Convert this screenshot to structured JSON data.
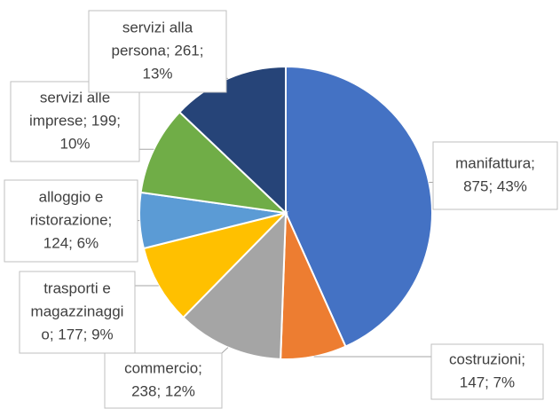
{
  "chart_data": {
    "type": "pie",
    "values": [
      875,
      147,
      238,
      177,
      124,
      199,
      261
    ],
    "value_labels": [
      [
        "manifattura;",
        "875; 43%"
      ],
      [
        "costruzioni;",
        "147; 7%"
      ],
      [
        "commercio;",
        "238; 12%"
      ],
      [
        "trasporti e",
        "magazzinaggi",
        "o; 177; 9%"
      ],
      [
        "alloggio e",
        "ristorazione;",
        "124; 6%"
      ],
      [
        "servizi alle",
        "imprese; 199;",
        "10%"
      ],
      [
        "servizi alla",
        "persona; 261;",
        "13%"
      ]
    ],
    "colors": [
      "#4472c4",
      "#ed7d31",
      "#a5a5a5",
      "#ffc000",
      "#5b9bd5",
      "#70ad47",
      "#264478"
    ]
  }
}
